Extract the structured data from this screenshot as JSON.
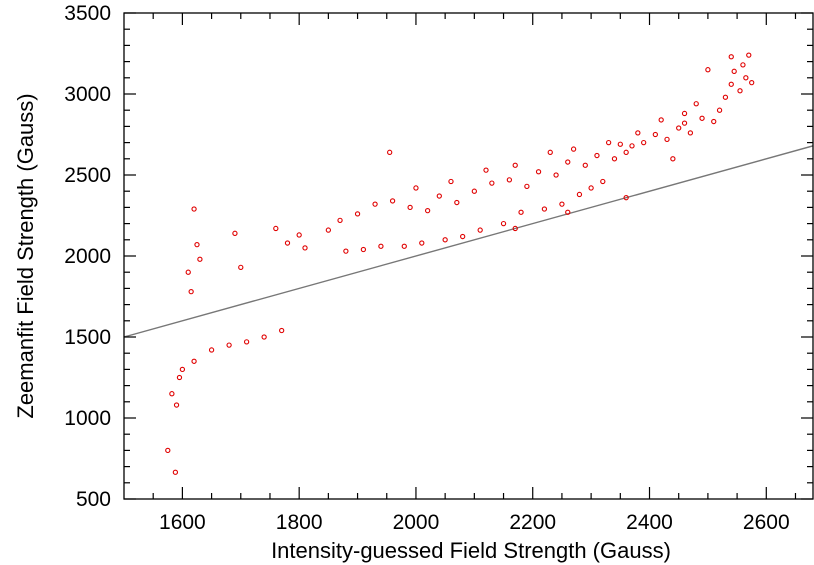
{
  "chart_data": {
    "type": "scatter",
    "title": "",
    "xlabel": "Intensity-guessed Field Strength (Gauss)",
    "ylabel": "Zeemanfit Field Strength (Gauss)",
    "xlim": [
      1500,
      2680
    ],
    "ylim": [
      500,
      3500
    ],
    "xticks": [
      1600,
      1800,
      2000,
      2200,
      2400,
      2600
    ],
    "yticks": [
      500,
      1000,
      1500,
      2000,
      2500,
      3000,
      3500
    ],
    "x_minor_step": 50,
    "y_minor_step": 100,
    "grid": false,
    "legend": "none",
    "marker": "open-circle",
    "colors": {
      "points": "#e00000",
      "reference_line": "#777777",
      "axes": "#000000"
    },
    "reference_line": {
      "description": "y = x",
      "from": [
        1500,
        1500
      ],
      "to": [
        2680,
        2680
      ]
    },
    "series": [
      {
        "points": [
          [
            1575,
            800
          ],
          [
            1588,
            665
          ],
          [
            1582,
            1150
          ],
          [
            1595,
            1250
          ],
          [
            1590,
            1080
          ],
          [
            1620,
            2290
          ],
          [
            1955,
            2640
          ],
          [
            1610,
            1900
          ],
          [
            1625,
            2070
          ],
          [
            1630,
            1980
          ],
          [
            1615,
            1780
          ],
          [
            1700,
            1930
          ],
          [
            1690,
            2140
          ],
          [
            1760,
            2170
          ],
          [
            1780,
            2080
          ],
          [
            1800,
            2130
          ],
          [
            1810,
            2050
          ],
          [
            1850,
            2160
          ],
          [
            1870,
            2220
          ],
          [
            1900,
            2260
          ],
          [
            1930,
            2320
          ],
          [
            1960,
            2340
          ],
          [
            1990,
            2300
          ],
          [
            2020,
            2280
          ],
          [
            2040,
            2370
          ],
          [
            2070,
            2330
          ],
          [
            2100,
            2400
          ],
          [
            2130,
            2450
          ],
          [
            2160,
            2470
          ],
          [
            2190,
            2430
          ],
          [
            2210,
            2520
          ],
          [
            2240,
            2500
          ],
          [
            2260,
            2580
          ],
          [
            2290,
            2560
          ],
          [
            2310,
            2620
          ],
          [
            2340,
            2600
          ],
          [
            2360,
            2640
          ],
          [
            2390,
            2700
          ],
          [
            2410,
            2750
          ],
          [
            2430,
            2720
          ],
          [
            2450,
            2790
          ],
          [
            2470,
            2760
          ],
          [
            2490,
            2850
          ],
          [
            2510,
            2830
          ],
          [
            2520,
            2900
          ],
          [
            2530,
            2980
          ],
          [
            2540,
            3060
          ],
          [
            2545,
            3140
          ],
          [
            2555,
            3020
          ],
          [
            2560,
            3180
          ],
          [
            2565,
            3100
          ],
          [
            2570,
            3240
          ],
          [
            2575,
            3070
          ],
          [
            2540,
            3230
          ],
          [
            2500,
            3150
          ],
          [
            2480,
            2940
          ],
          [
            2460,
            2880
          ],
          [
            2420,
            2840
          ],
          [
            2380,
            2760
          ],
          [
            2350,
            2690
          ],
          [
            2320,
            2460
          ],
          [
            2300,
            2420
          ],
          [
            2280,
            2380
          ],
          [
            2250,
            2320
          ],
          [
            2220,
            2290
          ],
          [
            2180,
            2270
          ],
          [
            2150,
            2200
          ],
          [
            2110,
            2160
          ],
          [
            2080,
            2120
          ],
          [
            2050,
            2100
          ],
          [
            2010,
            2080
          ],
          [
            1980,
            2060
          ],
          [
            1940,
            2060
          ],
          [
            1910,
            2040
          ],
          [
            1880,
            2030
          ],
          [
            2000,
            2420
          ],
          [
            2060,
            2460
          ],
          [
            2120,
            2530
          ],
          [
            2170,
            2560
          ],
          [
            2230,
            2640
          ],
          [
            2270,
            2660
          ],
          [
            2330,
            2700
          ],
          [
            2370,
            2680
          ],
          [
            2440,
            2600
          ],
          [
            2460,
            2820
          ],
          [
            2170,
            2170
          ],
          [
            2260,
            2270
          ],
          [
            2360,
            2360
          ],
          [
            1600,
            1300
          ],
          [
            1620,
            1350
          ],
          [
            1650,
            1420
          ],
          [
            1680,
            1450
          ],
          [
            1710,
            1470
          ],
          [
            1740,
            1500
          ],
          [
            1770,
            1540
          ]
        ]
      }
    ]
  }
}
